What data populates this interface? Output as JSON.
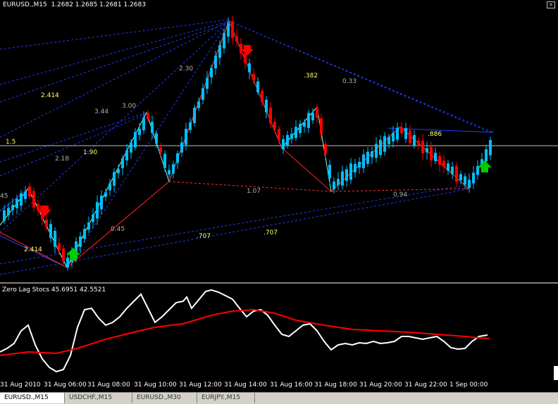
{
  "window": {
    "symbol": "EURUSD.,M15",
    "ohlc": "1.2682 1.2685 1.2681 1.2683",
    "close_icon": "close-icon"
  },
  "oscillator": {
    "title": "Zero Lag Stocs 45.6951 42.5521",
    "colors": {
      "main": "#ffffff",
      "signal": "#ff0000"
    }
  },
  "time_axis": {
    "labels": [
      "31 Aug 2010",
      "31 Aug 06:00",
      "31 Aug 08:00",
      "31 Aug 10:00",
      "31 Aug 12:00",
      "31 Aug 14:00",
      "31 Aug 16:00",
      "31 Aug 18:00",
      "31 Aug 20:00",
      "31 Aug 22:00",
      "1 Sep 00:00"
    ]
  },
  "fib_labels": {
    "l_2414_top": "2.414",
    "l_344": "3.44",
    "l_300": "3.00",
    "l_230": "2.30",
    "l_382": ".382",
    "l_033": "0.33",
    "l_15": "1.5",
    "l_218": "2.18",
    "l_190": "1.90",
    "l_45": "45",
    "l_107": "1.07",
    "l_094": "0.94",
    "l_886": ".886",
    "l_045": "0.45",
    "l_707a": ".707",
    "l_707b": ".707",
    "l_2414_bot": "2.414"
  },
  "tabs": [
    {
      "label": "EURUSD.,M15",
      "active": true
    },
    {
      "label": "USDCHF.,M15",
      "active": false
    },
    {
      "label": "EURUSD.,M30",
      "active": false
    },
    {
      "label": "EURJPY.,M15",
      "active": false
    }
  ],
  "colors": {
    "bull": "#00bfff",
    "bear": "#ff0000",
    "zigzag_up": "#7fffd4",
    "zigzag_down": "#ff0000",
    "fib_blue": "#1e3cff",
    "fib_red": "#ff3030",
    "arrow_up": "#00cc00",
    "arrow_down": "#ff0000",
    "hline": "#c0c0c0"
  }
}
